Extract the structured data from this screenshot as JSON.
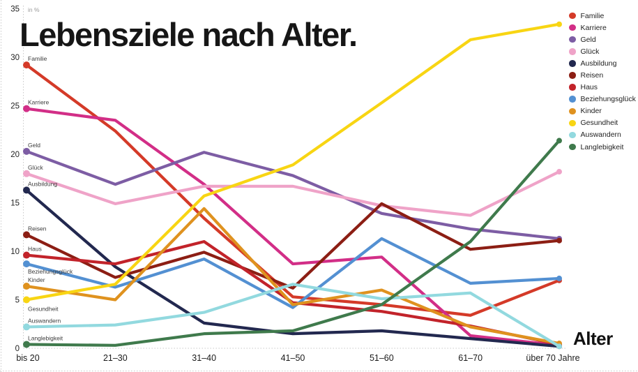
{
  "title": "Lebensziele nach Alter.",
  "unit_label": "in %",
  "x_axis_label": "Alter",
  "chart_data": {
    "type": "line",
    "title": "Lebensziele nach Alter.",
    "ylabel": "in %",
    "xlabel": "Alter",
    "ylim": [
      0,
      35
    ],
    "yticks": [
      0,
      5,
      10,
      15,
      20,
      25,
      30,
      35
    ],
    "grid": false,
    "legend_position": "top-right",
    "categories": [
      "bis 20",
      "21–30",
      "31–40",
      "41–50",
      "51–60",
      "61–70",
      "über 70 Jahre"
    ],
    "series": [
      {
        "name": "Familie",
        "color": "#d43a28",
        "values": [
          29.2,
          22.4,
          13.4,
          5.3,
          4.5,
          3.4,
          7.0
        ]
      },
      {
        "name": "Karriere",
        "color": "#d22e87",
        "values": [
          24.7,
          23.5,
          16.9,
          8.7,
          9.4,
          1.3,
          0.3
        ]
      },
      {
        "name": "Geld",
        "color": "#7d5da4",
        "values": [
          20.3,
          16.9,
          20.2,
          17.8,
          13.9,
          12.3,
          11.3
        ]
      },
      {
        "name": "Glück",
        "color": "#efa3c8",
        "values": [
          18.0,
          14.9,
          16.7,
          16.7,
          14.7,
          13.7,
          18.2
        ]
      },
      {
        "name": "Ausbildung",
        "color": "#22284f",
        "values": [
          16.3,
          8.4,
          2.6,
          1.5,
          1.8,
          1.0,
          0.2
        ]
      },
      {
        "name": "Reisen",
        "color": "#8c1e14",
        "values": [
          11.7,
          7.3,
          9.9,
          6.2,
          14.9,
          10.2,
          11.1
        ]
      },
      {
        "name": "Haus",
        "color": "#c2232a",
        "values": [
          9.6,
          8.7,
          11.0,
          4.7,
          3.8,
          2.3,
          0.4
        ]
      },
      {
        "name": "Beziehungsglück",
        "color": "#5390d2",
        "values": [
          8.7,
          6.3,
          9.2,
          4.2,
          11.3,
          6.7,
          7.2
        ]
      },
      {
        "name": "Kinder",
        "color": "#df921f",
        "values": [
          6.4,
          5.0,
          14.4,
          4.5,
          6.0,
          2.2,
          0.5
        ]
      },
      {
        "name": "Gesundheit",
        "color": "#f8d513",
        "values": [
          5.0,
          6.6,
          15.7,
          18.9,
          25.3,
          31.8,
          33.4
        ]
      },
      {
        "name": "Auswandern",
        "color": "#92d9df",
        "values": [
          2.2,
          2.4,
          3.7,
          6.6,
          5.1,
          5.7,
          0.2
        ]
      },
      {
        "name": "Langlebigkeit",
        "color": "#3f7a4c",
        "values": [
          0.4,
          0.3,
          1.5,
          1.8,
          4.5,
          11.0,
          21.4
        ]
      }
    ]
  }
}
